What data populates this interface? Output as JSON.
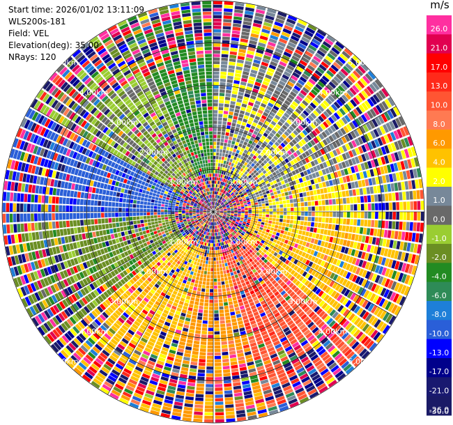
{
  "header": {
    "start_time": "Start time: 2026/01/02 13:11:09",
    "instrument": "WLS200s-181",
    "field": "Field: VEL",
    "elevation": "Elevation(deg): 35.00",
    "nrays": "NRays: 120"
  },
  "colorbar": {
    "unit": "m/s",
    "ticks": [
      "26.0",
      "21.0",
      "17.0",
      "13.0",
      "10.0",
      "8.0",
      "6.0",
      "4.0",
      "2.0",
      "1.0",
      "0.0",
      "-1.0",
      "-2.0",
      "-4.0",
      "-6.0",
      "-8.0",
      "-10.0",
      "-13.0",
      "-17.0",
      "-21.0",
      "-26.0",
      "-30.0"
    ],
    "colors": [
      "#ff2fa0",
      "#e10050",
      "#ff0000",
      "#ff2a1a",
      "#ff5533",
      "#ff7a52",
      "#ff9900",
      "#ffc200",
      "#ffff00",
      "#778899",
      "#696969",
      "#9acd32",
      "#6b8e23",
      "#228b22",
      "#2e8b57",
      "#1e7fd8",
      "#2a5fd8",
      "#0000ff",
      "#00008b",
      "#191970",
      "#1a1a66"
    ]
  },
  "chart_data": {
    "type": "heatmap",
    "projection": "polar-ppi",
    "field": "VEL",
    "units": "m/s",
    "nrays": 120,
    "range_rings_km": [
      1,
      2,
      3,
      4,
      5
    ],
    "ring_labels": [
      "1.00km",
      "2.00km",
      "3.00km",
      "4.00km",
      "5.00km"
    ],
    "max_range_km": 5.0,
    "velocity_range": [
      -30.0,
      26.0
    ],
    "sectors": [
      {
        "az_from": 0,
        "az_to": 25,
        "value": 0.5
      },
      {
        "az_from": 25,
        "az_to": 70,
        "value": 0.5
      },
      {
        "az_from": 70,
        "az_to": 95,
        "value": 1.5
      },
      {
        "az_from": 95,
        "az_to": 130,
        "value": 3.0
      },
      {
        "az_from": 130,
        "az_to": 165,
        "value": 9.0
      },
      {
        "az_from": 165,
        "az_to": 195,
        "value": 5.0
      },
      {
        "az_from": 195,
        "az_to": 230,
        "value": 3.0
      },
      {
        "az_from": 230,
        "az_to": 265,
        "value": -3.0
      },
      {
        "az_from": 265,
        "az_to": 300,
        "value": -12.0
      },
      {
        "az_from": 300,
        "az_to": 335,
        "value": -1.5
      },
      {
        "az_from": 335,
        "az_to": 360,
        "value": -5.0
      }
    ]
  }
}
